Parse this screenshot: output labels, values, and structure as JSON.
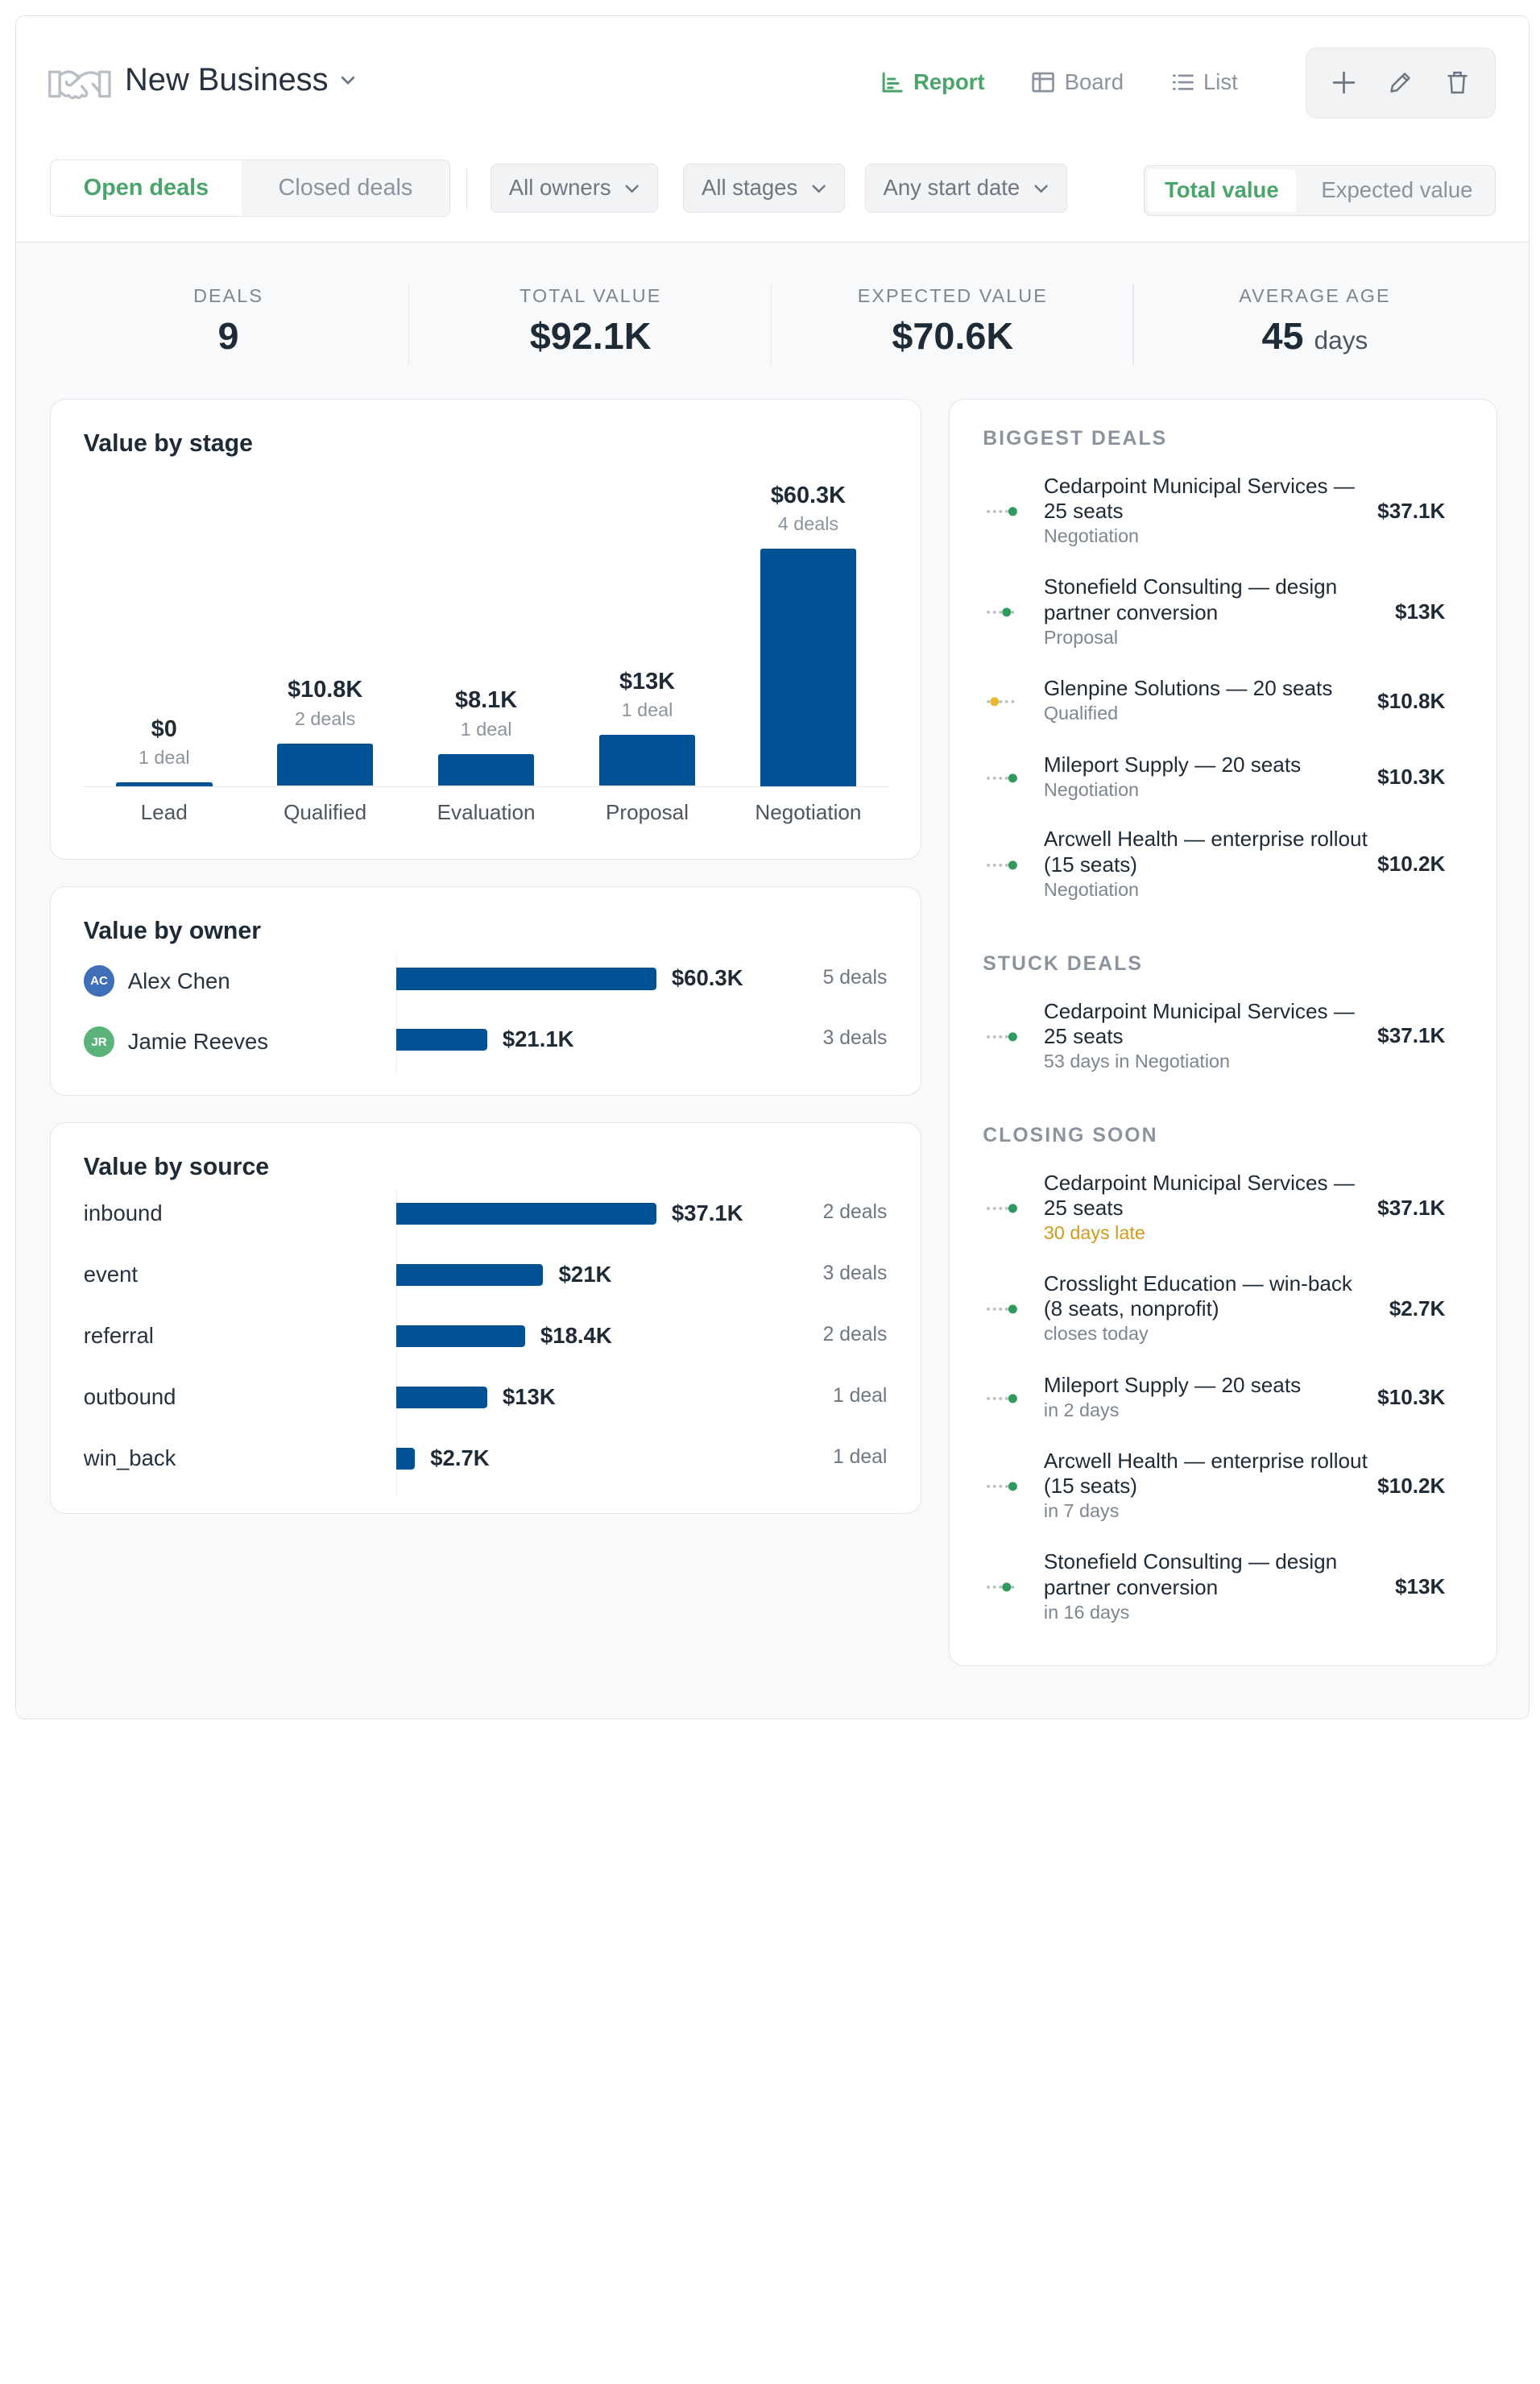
{
  "header": {
    "title": "New Business",
    "views": [
      {
        "label": "Report",
        "icon": "chart-icon",
        "active": true
      },
      {
        "label": "Board",
        "icon": "board-icon",
        "active": false
      },
      {
        "label": "List",
        "icon": "list-icon",
        "active": false
      }
    ],
    "tools": [
      "plus-icon",
      "pencil-icon",
      "trash-icon"
    ]
  },
  "filters": {
    "deal_tabs": [
      "Open deals",
      "Closed deals"
    ],
    "owners": "All owners",
    "stages": "All stages",
    "start_date": "Any start date",
    "value_tabs": [
      "Total value",
      "Expected value"
    ]
  },
  "stats": [
    {
      "label": "DEALS",
      "value": "9",
      "unit": ""
    },
    {
      "label": "TOTAL VALUE",
      "value": "$92.1K",
      "unit": ""
    },
    {
      "label": "EXPECTED VALUE",
      "value": "$70.6K",
      "unit": ""
    },
    {
      "label": "AVERAGE AGE",
      "value": "45",
      "unit": "days"
    }
  ],
  "stage_chart": {
    "title": "Value by stage",
    "stages": [
      {
        "label": "Lead",
        "value_label": "$0",
        "count": "1 deal",
        "value": 0
      },
      {
        "label": "Qualified",
        "value_label": "$10.8K",
        "count": "2 deals",
        "value": 10.8
      },
      {
        "label": "Evaluation",
        "value_label": "$8.1K",
        "count": "1 deal",
        "value": 8.1
      },
      {
        "label": "Proposal",
        "value_label": "$13K",
        "count": "1 deal",
        "value": 13
      },
      {
        "label": "Negotiation",
        "value_label": "$60.3K",
        "count": "4 deals",
        "value": 60.3
      }
    ]
  },
  "owner_chart": {
    "title": "Value by owner",
    "rows": [
      {
        "name": "Alex Chen",
        "initials": "AC",
        "color": "#3f6fb6",
        "value_label": "$60.3K",
        "count": "5 deals",
        "value": 60.3
      },
      {
        "name": "Jamie Reeves",
        "initials": "JR",
        "color": "#5bb27b",
        "value_label": "$21.1K",
        "count": "3 deals",
        "value": 21.1
      }
    ]
  },
  "source_chart": {
    "title": "Value by source",
    "rows": [
      {
        "name": "inbound",
        "value_label": "$37.1K",
        "count": "2 deals",
        "value": 37.1
      },
      {
        "name": "event",
        "value_label": "$21K",
        "count": "3 deals",
        "value": 21
      },
      {
        "name": "referral",
        "value_label": "$18.4K",
        "count": "2 deals",
        "value": 18.4
      },
      {
        "name": "outbound",
        "value_label": "$13K",
        "count": "1 deal",
        "value": 13
      },
      {
        "name": "win_back",
        "value_label": "$2.7K",
        "count": "1 deal",
        "value": 2.7
      }
    ]
  },
  "biggest_deals": {
    "title": "BIGGEST DEALS",
    "items": [
      {
        "name": "Cedarpoint Municipal Services — 25 seats",
        "sub": "Negotiation",
        "amount": "$37.1K",
        "stage_index": 4,
        "dot_color": "#2e9a5b"
      },
      {
        "name": "Stonefield Consulting — design partner conversion",
        "sub": "Proposal",
        "amount": "$13K",
        "stage_index": 3,
        "dot_color": "#2e9a5b"
      },
      {
        "name": "Glenpine Solutions — 20 seats",
        "sub": "Qualified",
        "amount": "$10.8K",
        "stage_index": 1,
        "dot_color": "#e8b931"
      },
      {
        "name": "Mileport Supply — 20 seats",
        "sub": "Negotiation",
        "amount": "$10.3K",
        "stage_index": 4,
        "dot_color": "#2e9a5b"
      },
      {
        "name": "Arcwell Health — enterprise rollout (15 seats)",
        "sub": "Negotiation",
        "amount": "$10.2K",
        "stage_index": 4,
        "dot_color": "#2e9a5b"
      }
    ]
  },
  "stuck_deals": {
    "title": "STUCK DEALS",
    "items": [
      {
        "name": "Cedarpoint Municipal Services — 25 seats",
        "sub": "53 days in Negotiation",
        "amount": "$37.1K",
        "stage_index": 4,
        "dot_color": "#2e9a5b"
      }
    ]
  },
  "closing_soon": {
    "title": "CLOSING SOON",
    "items": [
      {
        "name": "Cedarpoint Municipal Services — 25 seats",
        "sub": "30 days late",
        "amount": "$37.1K",
        "stage_index": 4,
        "dot_color": "#2e9a5b",
        "warn": true
      },
      {
        "name": "Crosslight Education — win-back (8 seats, nonprofit)",
        "sub": "closes today",
        "amount": "$2.7K",
        "stage_index": 4,
        "dot_color": "#2e9a5b"
      },
      {
        "name": "Mileport Supply — 20 seats",
        "sub": "in 2 days",
        "amount": "$10.3K",
        "stage_index": 4,
        "dot_color": "#2e9a5b"
      },
      {
        "name": "Arcwell Health — enterprise rollout (15 seats)",
        "sub": "in 7 days",
        "amount": "$10.2K",
        "stage_index": 4,
        "dot_color": "#2e9a5b"
      },
      {
        "name": "Stonefield Consulting — design partner conversion",
        "sub": "in 16 days",
        "amount": "$13K",
        "stage_index": 3,
        "dot_color": "#2e9a5b"
      }
    ]
  },
  "colors": {
    "accent": "#4aa56a",
    "bar": "#005294",
    "warn": "#d19a1d"
  }
}
